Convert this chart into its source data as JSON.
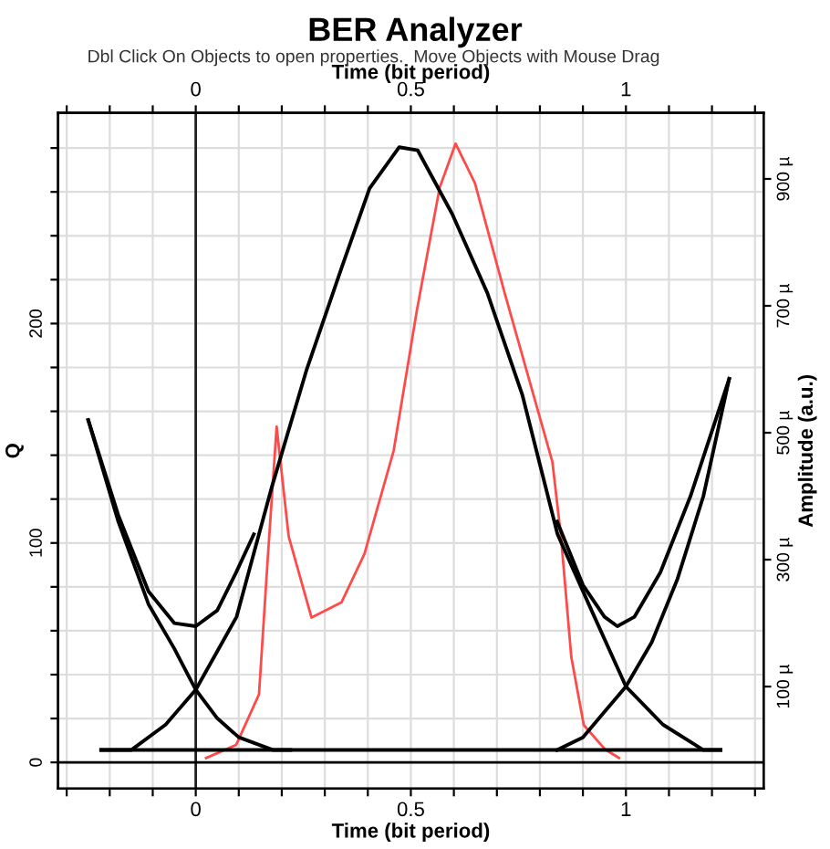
{
  "chart_data": {
    "type": "line",
    "title": "BER Analyzer",
    "subtitle": "Dbl Click On Objects to open properties.  Move Objects with Mouse Drag",
    "xlabel": "Time (bit period)",
    "x2label": "Time (bit period)",
    "ylabel": "Q",
    "y2label": "Amplitude (a.u.)",
    "xlim": [
      -0.32,
      1.32
    ],
    "x2lim": [
      -0.32,
      1.32
    ],
    "xticks": [
      {
        "value": -0.3,
        "label": null
      },
      {
        "value": -0.2,
        "label": null
      },
      {
        "value": -0.1,
        "label": null
      },
      0,
      {
        "value": 0.1,
        "label": null
      },
      {
        "value": 0.2,
        "label": null
      },
      {
        "value": 0.3,
        "label": null
      },
      {
        "value": 0.4,
        "label": null
      },
      0.5,
      {
        "value": 0.6,
        "label": null
      },
      {
        "value": 0.7,
        "label": null
      },
      {
        "value": 0.8,
        "label": null
      },
      {
        "value": 0.9,
        "label": null
      },
      1,
      {
        "value": 1.1,
        "label": null
      },
      {
        "value": 1.2,
        "label": null
      },
      {
        "value": 1.3,
        "label": null
      }
    ],
    "x2ticks": [
      {
        "value": -0.3,
        "label": null
      },
      {
        "value": -0.2,
        "label": null
      },
      {
        "value": -0.1,
        "label": null
      },
      0,
      {
        "value": 0.1,
        "label": null
      },
      {
        "value": 0.2,
        "label": null
      },
      {
        "value": 0.3,
        "label": null
      },
      {
        "value": 0.4,
        "label": null
      },
      0.5,
      {
        "value": 0.6,
        "label": null
      },
      {
        "value": 0.7,
        "label": null
      },
      {
        "value": 0.8,
        "label": null
      },
      {
        "value": 0.9,
        "label": null
      },
      1,
      {
        "value": 1.1,
        "label": null
      },
      {
        "value": 1.2,
        "label": null
      },
      {
        "value": 1.3,
        "label": null
      }
    ],
    "ylim": [
      -12,
      296
    ],
    "yticks": [
      0,
      {
        "value": 20,
        "label": null
      },
      {
        "value": 40,
        "label": null
      },
      {
        "value": 60,
        "label": null
      },
      {
        "value": 80,
        "label": null
      },
      100,
      {
        "value": 120,
        "label": null
      },
      {
        "value": 140,
        "label": null
      },
      {
        "value": 160,
        "label": null
      },
      {
        "value": 180,
        "label": null
      },
      200,
      {
        "value": 220,
        "label": null
      },
      {
        "value": 240,
        "label": null
      },
      {
        "value": 260,
        "label": null
      },
      {
        "value": 280,
        "label": null
      }
    ],
    "y2lim": [
      -61,
      1004
    ],
    "y2ticks": [
      {
        "value": 100,
        "label": "100 µ"
      },
      {
        "value": 300,
        "label": "300 µ"
      },
      {
        "value": 500,
        "label": "500 µ"
      },
      {
        "value": 700,
        "label": "700 µ"
      },
      {
        "value": 900,
        "label": "900 µ"
      }
    ],
    "grid": true,
    "legend": false,
    "marker": "none",
    "line_style": "solid",
    "ref_lines": [
      {
        "axis": "x",
        "value": 0,
        "color": "#202020"
      },
      {
        "axis": "y",
        "value": 0,
        "color": "#000000"
      }
    ],
    "series": [
      {
        "color": "#ff4a4a",
        "x": [
          0.024,
          0.094,
          0.147,
          0.167,
          0.188,
          0.216,
          0.269,
          0.339,
          0.392,
          0.46,
          0.514,
          0.567,
          0.604,
          0.649,
          0.718,
          0.829,
          0.849,
          0.873,
          0.902,
          0.951,
          0.984
        ],
        "values": [
          2,
          8,
          31,
          92,
          153,
          103,
          66,
          73,
          95,
          142,
          206,
          262,
          282,
          264,
          214,
          137,
          103,
          48,
          17,
          6,
          2
        ]
      },
      {
        "color": "#000000",
        "axis": "y2",
        "x": [
          -0.22,
          1.22
        ],
        "values": [
          0,
          0
        ]
      },
      {
        "color": "#000000",
        "axis": "y2",
        "x": [
          -0.22,
          -0.15,
          -0.07,
          0,
          0.095,
          0.177,
          0.258,
          0.339,
          0.404,
          0.473,
          0.516,
          0.596,
          0.678,
          0.759,
          0.841,
          0.92,
          1.0,
          1.086,
          1.18,
          1.22
        ],
        "values": [
          0,
          0,
          40,
          95,
          210,
          415,
          600,
          760,
          885,
          950,
          945,
          845,
          720,
          560,
          340,
          220,
          100,
          40,
          0,
          0
        ]
      },
      {
        "color": "#000000",
        "axis": "y2",
        "x": [
          -0.25,
          -0.18,
          -0.11,
          -0.05,
          0,
          0.05,
          0.094,
          0.135
        ],
        "values": [
          520,
          370,
          250,
          200,
          195,
          220,
          280,
          340
        ]
      },
      {
        "color": "#000000",
        "axis": "y2",
        "x": [
          -0.25,
          -0.18,
          -0.11,
          -0.05,
          0,
          0.05,
          0.1,
          0.18,
          0.22
        ],
        "values": [
          520,
          360,
          230,
          160,
          95,
          50,
          20,
          0,
          0
        ]
      },
      {
        "color": "#000000",
        "axis": "y2",
        "x": [
          0.84,
          0.9,
          0.95,
          1.0,
          1.06,
          1.12,
          1.18,
          1.24
        ],
        "values": [
          0,
          20,
          60,
          100,
          170,
          270,
          400,
          585
        ]
      },
      {
        "color": "#000000",
        "axis": "y2",
        "x": [
          0.84,
          0.9,
          0.95,
          0.98,
          1.02,
          1.08,
          1.15,
          1.24
        ],
        "values": [
          360,
          260,
          210,
          195,
          210,
          280,
          400,
          585
        ]
      }
    ]
  }
}
